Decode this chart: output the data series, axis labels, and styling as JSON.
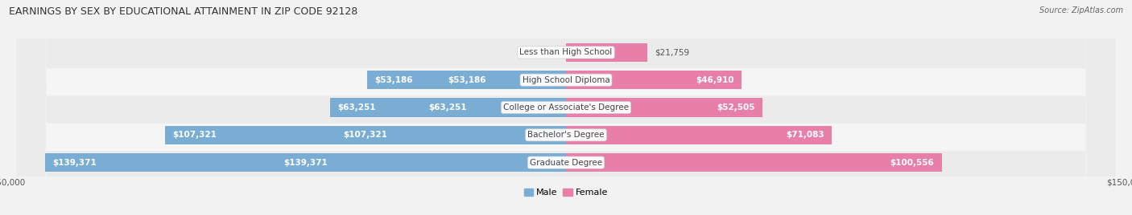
{
  "title": "EARNINGS BY SEX BY EDUCATIONAL ATTAINMENT IN ZIP CODE 92128",
  "source": "Source: ZipAtlas.com",
  "categories": [
    "Less than High School",
    "High School Diploma",
    "College or Associate's Degree",
    "Bachelor's Degree",
    "Graduate Degree"
  ],
  "male_values": [
    0,
    53186,
    63251,
    107321,
    139371
  ],
  "female_values": [
    21759,
    46910,
    52505,
    71083,
    100556
  ],
  "male_color": "#7aadd4",
  "female_color": "#e87fa8",
  "x_max": 150000,
  "bg_color": "#f2f2f2",
  "row_bg_light": "#f8f8f8",
  "row_bg_dark": "#e8e8e8",
  "title_fontsize": 9.0,
  "source_fontsize": 7.0,
  "label_fontsize": 7.5,
  "tick_fontsize": 7.5,
  "inside_label_threshold": 30000
}
